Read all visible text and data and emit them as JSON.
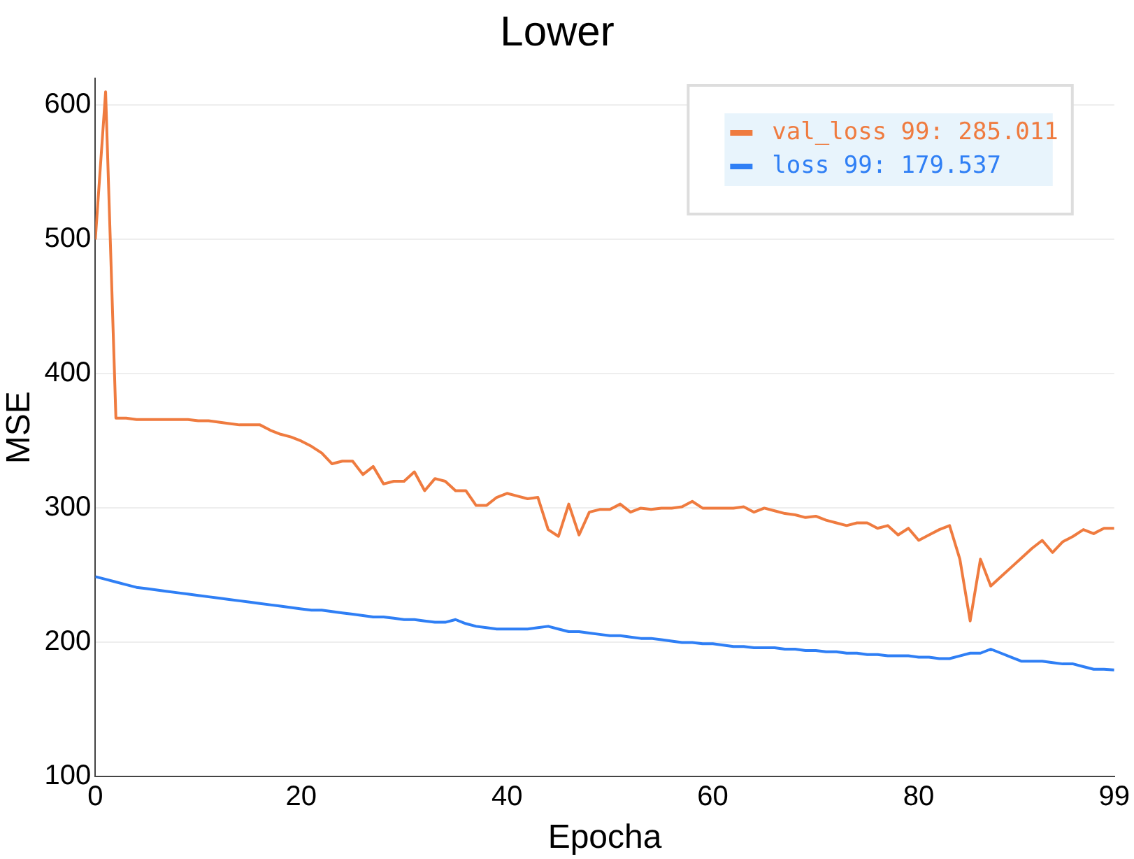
{
  "chart_data": {
    "type": "line",
    "title": "Lower",
    "xlabel": "Epocha",
    "ylabel": "MSE",
    "x": [
      0,
      1,
      2,
      3,
      4,
      5,
      6,
      7,
      8,
      9,
      10,
      11,
      12,
      13,
      14,
      15,
      16,
      17,
      18,
      19,
      20,
      21,
      22,
      23,
      24,
      25,
      26,
      27,
      28,
      29,
      30,
      31,
      32,
      33,
      34,
      35,
      36,
      37,
      38,
      39,
      40,
      41,
      42,
      43,
      44,
      45,
      46,
      47,
      48,
      49,
      50,
      51,
      52,
      53,
      54,
      55,
      56,
      57,
      58,
      59,
      60,
      61,
      62,
      63,
      64,
      65,
      66,
      67,
      68,
      69,
      70,
      71,
      72,
      73,
      74,
      75,
      76,
      77,
      78,
      79,
      80,
      81,
      82,
      83,
      84,
      85,
      86,
      87,
      88,
      89,
      90,
      91,
      92,
      93,
      94,
      95,
      96,
      97,
      98,
      99
    ],
    "series": [
      {
        "name": "val_loss 99: 285.011",
        "color": "#ef7b3f",
        "values": [
          500,
          610,
          367,
          367,
          366,
          366,
          366,
          366,
          366,
          366,
          365,
          365,
          364,
          363,
          362,
          362,
          362,
          358,
          355,
          353,
          350,
          346,
          341,
          333,
          335,
          335,
          325,
          331,
          318,
          320,
          320,
          327,
          313,
          322,
          320,
          313,
          313,
          302,
          302,
          308,
          311,
          309,
          307,
          308,
          284,
          279,
          303,
          280,
          297,
          299,
          299,
          303,
          297,
          300,
          299,
          300,
          300,
          301,
          305,
          300,
          300,
          300,
          300,
          301,
          297,
          300,
          298,
          296,
          295,
          293,
          294,
          291,
          289,
          287,
          289,
          289,
          285,
          287,
          280,
          285,
          276,
          280,
          284,
          287,
          262,
          216,
          262,
          242,
          249,
          256,
          263,
          270,
          276,
          267,
          275,
          279,
          284,
          281,
          285,
          285.011
        ]
      },
      {
        "name": "loss 99: 179.537",
        "color": "#2f7ff5",
        "values": [
          249,
          247,
          245,
          243,
          241,
          240,
          239,
          238,
          237,
          236,
          235,
          234,
          233,
          232,
          231,
          230,
          229,
          228,
          227,
          226,
          225,
          224,
          224,
          223,
          222,
          221,
          220,
          219,
          219,
          218,
          217,
          217,
          216,
          215,
          215,
          217,
          214,
          212,
          211,
          210,
          210,
          210,
          210,
          211,
          212,
          210,
          208,
          208,
          207,
          206,
          205,
          205,
          204,
          203,
          203,
          202,
          201,
          200,
          200,
          199,
          199,
          198,
          197,
          197,
          196,
          196,
          196,
          195,
          195,
          194,
          194,
          193,
          193,
          192,
          192,
          191,
          191,
          190,
          190,
          190,
          189,
          189,
          188,
          188,
          190,
          192,
          192,
          195,
          192,
          189,
          186,
          186,
          186,
          185,
          184,
          184,
          182,
          180,
          180,
          179.537
        ]
      }
    ],
    "xlim": [
      0,
      99
    ],
    "xticks": [
      0,
      20,
      40,
      60,
      80,
      99
    ],
    "ylim": [
      100,
      620
    ],
    "yticks": [
      100,
      200,
      300,
      400,
      500,
      600
    ],
    "grid": "y",
    "legend": "top right",
    "marker": "none",
    "line_style": "solid"
  }
}
